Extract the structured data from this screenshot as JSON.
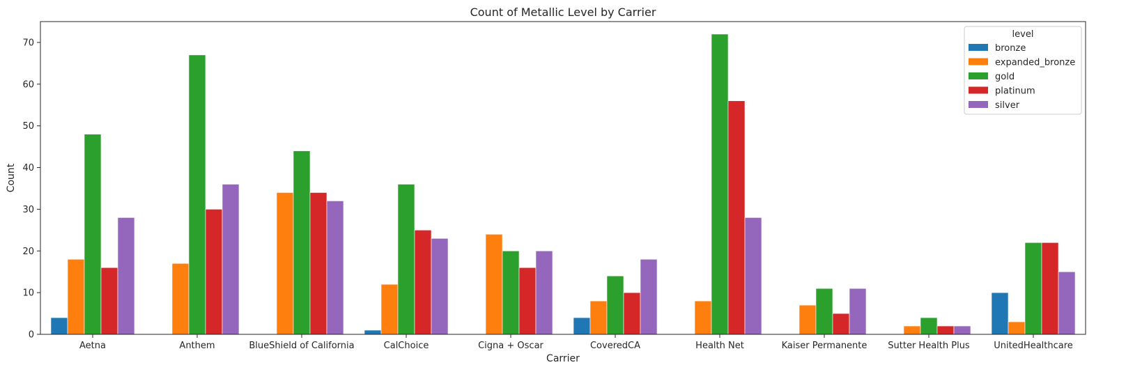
{
  "chart_data": {
    "type": "bar",
    "title": "Count of Metallic Level by Carrier",
    "xlabel": "Carrier",
    "ylabel": "Count",
    "ylim": [
      0,
      75
    ],
    "yticks": [
      0,
      10,
      20,
      30,
      40,
      50,
      60,
      70
    ],
    "grid": false,
    "legend_title": "level",
    "legend_position": "top-right",
    "categories": [
      "Aetna",
      "Anthem",
      "BlueShield of California",
      "CalChoice",
      "Cigna + Oscar",
      "CoveredCA",
      "Health Net",
      "Kaiser Permanente",
      "Sutter Health Plus",
      "UnitedHealthcare"
    ],
    "series": [
      {
        "name": "bronze",
        "color": "#1f77b4",
        "values": [
          4,
          null,
          null,
          1,
          null,
          4,
          null,
          null,
          null,
          10
        ]
      },
      {
        "name": "expanded_bronze",
        "color": "#ff7f0e",
        "values": [
          18,
          17,
          34,
          12,
          24,
          8,
          8,
          7,
          2,
          3
        ]
      },
      {
        "name": "gold",
        "color": "#2ca02c",
        "values": [
          48,
          67,
          44,
          36,
          20,
          14,
          72,
          11,
          4,
          22
        ]
      },
      {
        "name": "platinum",
        "color": "#d62728",
        "values": [
          16,
          30,
          34,
          25,
          16,
          10,
          56,
          5,
          2,
          22
        ]
      },
      {
        "name": "silver",
        "color": "#9467bd",
        "values": [
          28,
          36,
          32,
          23,
          20,
          18,
          28,
          11,
          2,
          15
        ]
      }
    ]
  }
}
